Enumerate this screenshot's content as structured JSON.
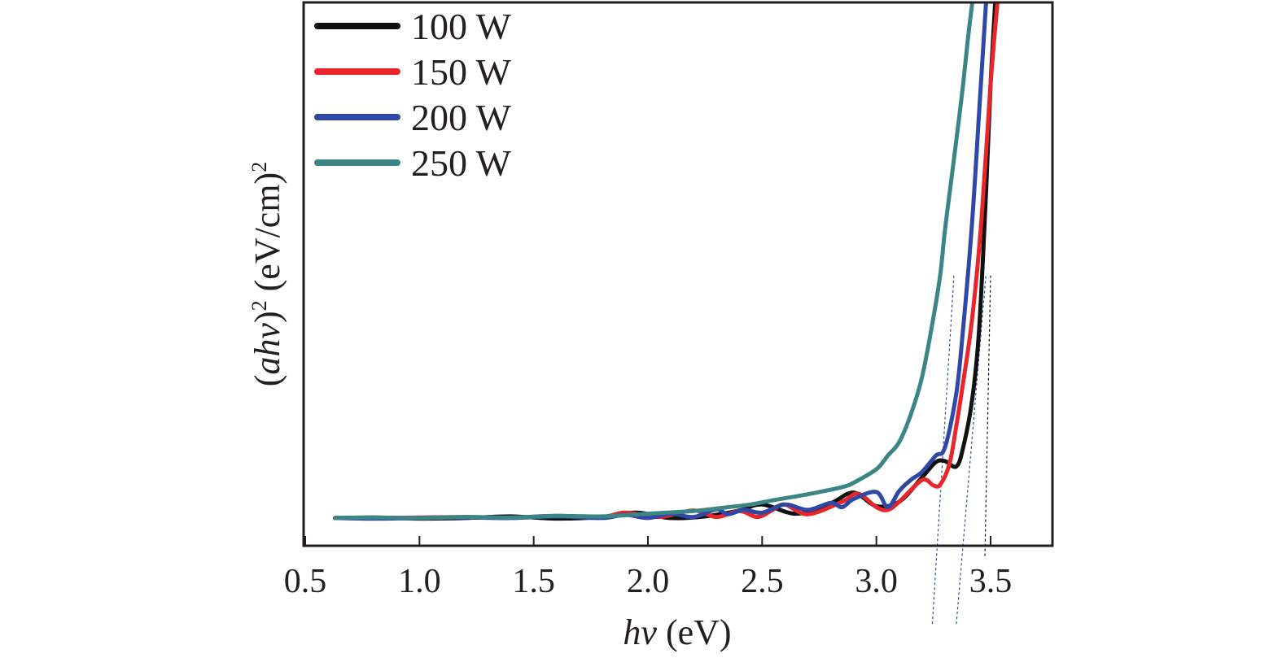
{
  "chart_data": {
    "type": "line",
    "xlabel_italic": "hv",
    "xlabel_rest": " (eV)",
    "ylabel_open": "(",
    "ylabel_italic": "ahv",
    "ylabel_close": ")",
    "ylabel_sup1": "2",
    "ylabel_unit": " (eV/cm)",
    "ylabel_sup2": "2",
    "xlim": [
      0.5,
      3.75
    ],
    "ylim": [
      0,
      100
    ],
    "x_ticks": [
      "0.5",
      "1.0",
      "1.5",
      "2.0",
      "2.5",
      "3.0",
      "3.5"
    ],
    "legend_position": "top-left",
    "grid": false,
    "series": [
      {
        "name": "100 W",
        "color": "#111111",
        "x": [
          0.63,
          0.8,
          1.0,
          1.2,
          1.4,
          1.6,
          1.8,
          1.95,
          2.1,
          2.25,
          2.4,
          2.5,
          2.65,
          2.8,
          2.9,
          3.0,
          3.1,
          3.2,
          3.26,
          3.3,
          3.35,
          3.38,
          3.42,
          3.45,
          3.48,
          3.5,
          3.52
        ],
        "y": [
          5.0,
          5.1,
          4.9,
          5.0,
          5.3,
          4.9,
          5.2,
          6.0,
          5.0,
          5.3,
          6.4,
          7.5,
          5.8,
          7.7,
          9.7,
          7.2,
          8.0,
          12.5,
          15.3,
          15.5,
          14.5,
          18.0,
          27.0,
          40.0,
          65.0,
          85.0,
          100.0
        ]
      },
      {
        "name": "150 W",
        "color": "#e8252a",
        "x": [
          0.63,
          0.8,
          1.0,
          1.2,
          1.4,
          1.6,
          1.8,
          1.9,
          2.05,
          2.2,
          2.3,
          2.4,
          2.48,
          2.55,
          2.6,
          2.7,
          2.85,
          2.92,
          3.0,
          3.05,
          3.1,
          3.2,
          3.25,
          3.28,
          3.32,
          3.35,
          3.38,
          3.42,
          3.46,
          3.5,
          3.53
        ],
        "y": [
          5.0,
          5.0,
          5.1,
          5.2,
          5.1,
          5.4,
          5.2,
          6.0,
          5.2,
          6.4,
          5.2,
          6.3,
          5.2,
          6.6,
          7.5,
          5.7,
          8.0,
          9.5,
          7.0,
          6.5,
          8.0,
          12.0,
          11.0,
          11.2,
          15.0,
          22.0,
          30.0,
          42.0,
          60.0,
          85.0,
          100.0
        ]
      },
      {
        "name": "200 W",
        "color": "#2e48a8",
        "x": [
          0.63,
          0.8,
          1.0,
          1.2,
          1.4,
          1.6,
          1.8,
          1.9,
          2.0,
          2.1,
          2.2,
          2.3,
          2.35,
          2.42,
          2.5,
          2.6,
          2.7,
          2.8,
          2.85,
          2.9,
          3.0,
          3.05,
          3.1,
          3.15,
          3.2,
          3.26,
          3.3,
          3.35,
          3.38,
          3.42,
          3.45,
          3.48
        ],
        "y": [
          5.0,
          4.9,
          5.0,
          5.1,
          5.0,
          5.3,
          5.0,
          5.6,
          5.0,
          5.8,
          5.2,
          6.6,
          5.7,
          6.5,
          6.0,
          7.5,
          6.5,
          7.8,
          7.0,
          8.5,
          9.8,
          7.0,
          10.0,
          12.0,
          13.5,
          16.5,
          18.0,
          28.0,
          40.0,
          60.0,
          80.0,
          100.0
        ]
      },
      {
        "name": "250 W",
        "color": "#3b8584",
        "x": [
          0.63,
          0.8,
          1.0,
          1.2,
          1.4,
          1.6,
          1.8,
          2.0,
          2.2,
          2.35,
          2.45,
          2.55,
          2.65,
          2.75,
          2.85,
          2.9,
          3.0,
          3.05,
          3.1,
          3.15,
          3.2,
          3.25,
          3.28,
          3.3,
          3.33,
          3.36,
          3.38,
          3.4,
          3.42
        ],
        "y": [
          5.0,
          5.1,
          5.0,
          5.2,
          5.1,
          5.4,
          5.3,
          5.8,
          6.3,
          7.0,
          7.5,
          8.3,
          9.0,
          9.8,
          10.7,
          11.5,
          14.0,
          16.5,
          19.0,
          24.0,
          31.0,
          42.0,
          50.0,
          58.0,
          68.0,
          78.0,
          85.0,
          93.0,
          100.0
        ]
      }
    ],
    "tangent_lines": [
      {
        "color": "#2e48a8",
        "x1": 3.245,
        "y1": -14.5,
        "x2": 3.34,
        "y2": 50.0
      },
      {
        "color": "#2e48a8",
        "x1": 3.35,
        "y1": -14.5,
        "x2": 3.48,
        "y2": 50.0
      },
      {
        "color": "#111111",
        "x1": 3.475,
        "y1": -2.0,
        "x2": 3.5,
        "y2": 50.0
      }
    ]
  }
}
